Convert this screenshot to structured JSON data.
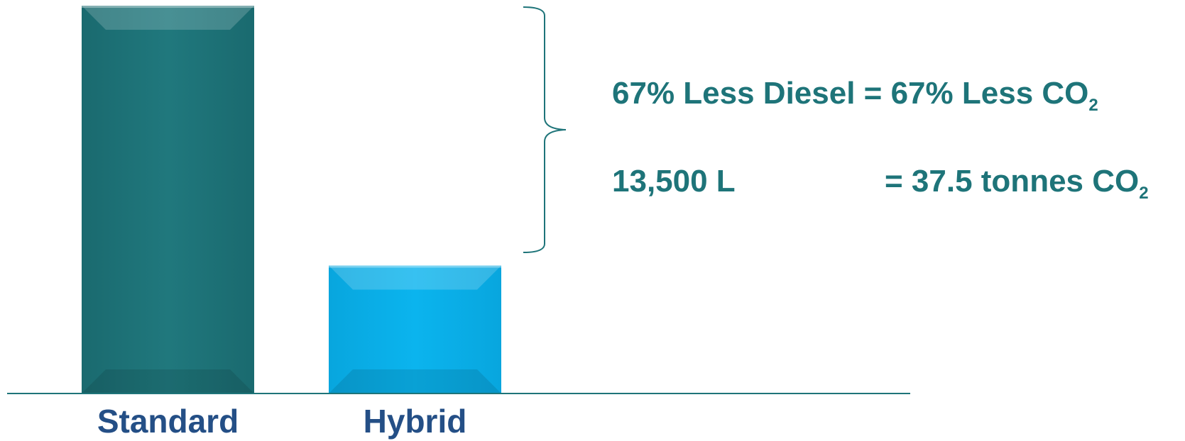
{
  "chart_data": {
    "type": "bar",
    "categories": [
      "Standard",
      "Hybrid"
    ],
    "values": [
      100,
      33
    ],
    "ylim": [
      0,
      100
    ],
    "title": "",
    "xlabel": "",
    "ylabel": "",
    "grid": false,
    "colors": [
      "#1e7479",
      "#0ab2ea"
    ],
    "label_color": "#244f86",
    "annotations": {
      "line1_text": "67% Less Diesel = 67% Less CO",
      "line1_sub": "2",
      "line2_left": "13,500 L",
      "line2_right_text": "= 37.5 tonnes CO",
      "line2_right_sub": "2"
    }
  }
}
